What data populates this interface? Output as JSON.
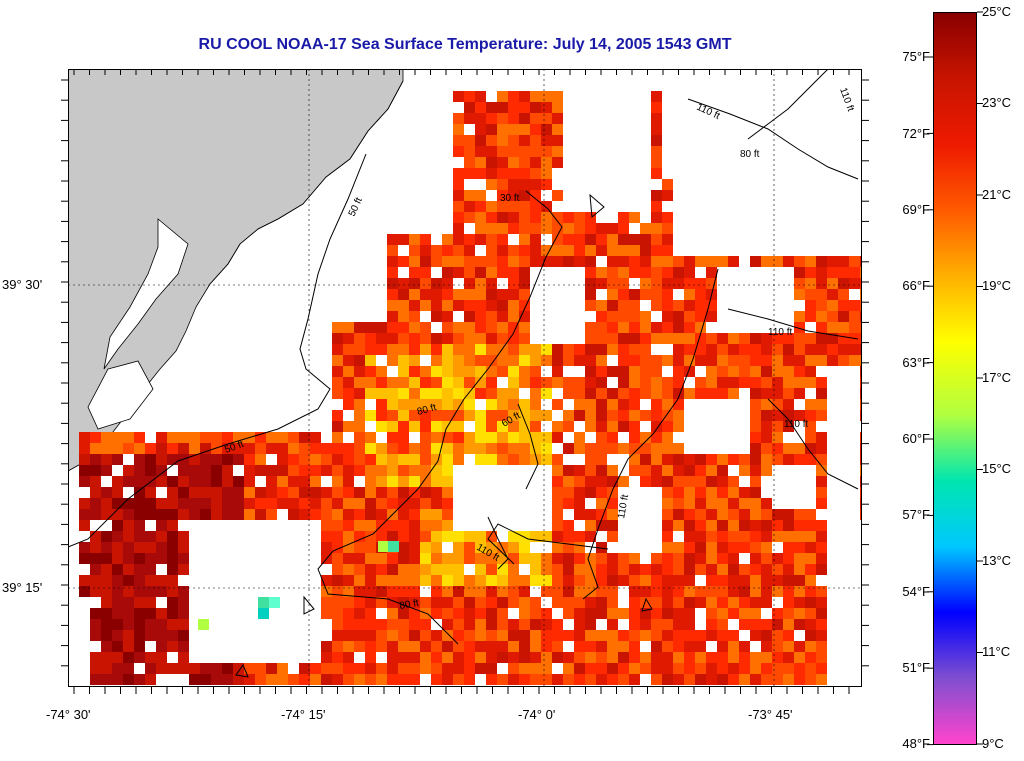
{
  "title": "RU COOL  NOAA-17  Sea Surface Temperature:  July 14, 2005 1543 GMT",
  "colors": {
    "land": "#c8c8c8",
    "title": "#1a1aa8",
    "scale": [
      "#ff44cc",
      "#7f4fd0",
      "#0000ff",
      "#00c8ff",
      "#00e6b0",
      "#b0ff40",
      "#ffff00",
      "#ffb000",
      "#ff5a00",
      "#ee1a00",
      "#c81400",
      "#8a0000"
    ]
  },
  "axes": {
    "longitude_labels": [
      "-74° 30'",
      "-74° 15'",
      "-74° 0'",
      "-73° 45'"
    ],
    "latitude_labels": [
      "39° 30'",
      "39° 15'"
    ]
  },
  "colorbar": {
    "fahrenheit": [
      "75°F",
      "72°F",
      "69°F",
      "66°F",
      "63°F",
      "60°F",
      "57°F",
      "54°F",
      "51°F",
      "48°F"
    ],
    "celsius": [
      "25°C",
      "23°C",
      "21°C",
      "19°C",
      "17°C",
      "15°C",
      "13°C",
      "11°C",
      "9°C"
    ]
  },
  "isobaths": [
    "110 ft",
    "110 ft",
    "80 ft",
    "50 ft",
    "30 ft",
    "110 ft",
    "80 ft",
    "60 ft",
    "50 ft",
    "110 ft",
    "110 ft",
    "110 ft",
    "80 ft"
  ]
}
